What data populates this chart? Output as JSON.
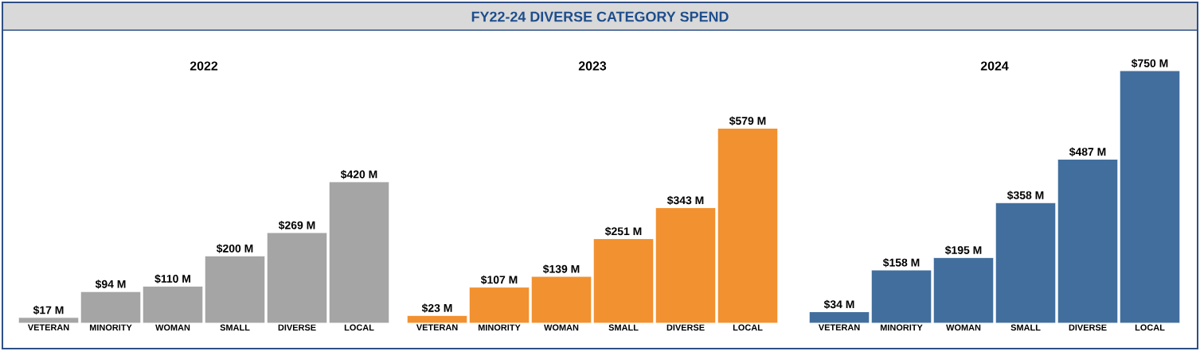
{
  "chart_data": [
    {
      "type": "bar",
      "title": "2022",
      "annotations": [
        "FY22-24 DIVERSE CATEGORY SPEND"
      ],
      "categories": [
        "VETERAN",
        "MINORITY",
        "WOMAN",
        "SMALL",
        "DIVERSE",
        "LOCAL"
      ],
      "values": [
        17,
        94,
        110,
        200,
        269,
        420
      ],
      "value_labels": [
        "$17 M",
        "$94 M",
        "$110 M",
        "$200 M",
        "$269 M",
        "$420 M"
      ],
      "color": "#a5a5a5"
    },
    {
      "type": "bar",
      "title": "2023",
      "categories": [
        "VETERAN",
        "MINORITY",
        "WOMAN",
        "SMALL",
        "DIVERSE",
        "LOCAL"
      ],
      "values": [
        23,
        107,
        139,
        251,
        343,
        579
      ],
      "value_labels": [
        "$23 M",
        "$107 M",
        "$139 M",
        "$251 M",
        "$343 M",
        "$579 M"
      ],
      "color": "#f2912f"
    },
    {
      "type": "bar",
      "title": "2024",
      "categories": [
        "VETERAN",
        "MINORITY",
        "WOMAN",
        "SMALL",
        "DIVERSE",
        "LOCAL"
      ],
      "values": [
        34,
        158,
        195,
        358,
        487,
        750
      ],
      "value_labels": [
        "$34 M",
        "$158 M",
        "$195 M",
        "$358 M",
        "$487 M",
        "$750 M"
      ],
      "color": "#426e9e"
    }
  ]
}
